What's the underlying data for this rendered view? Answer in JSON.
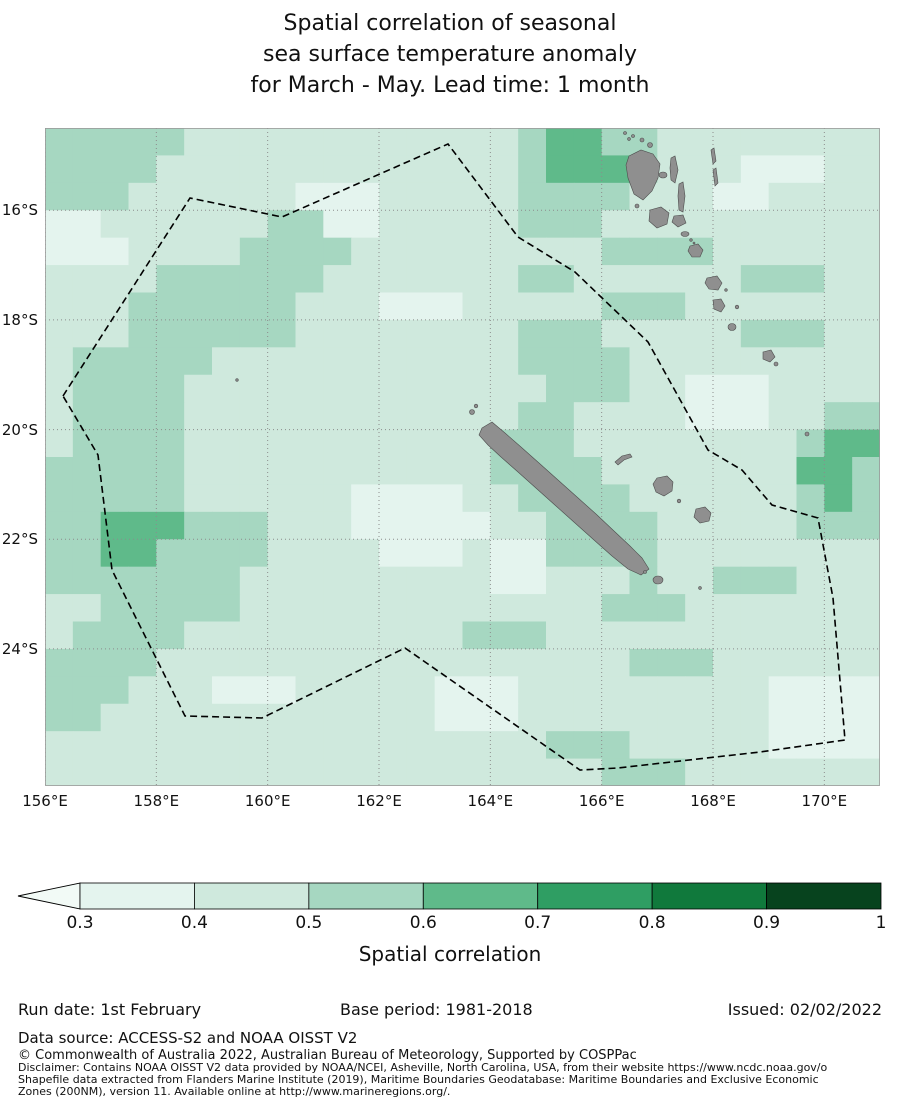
{
  "title": {
    "line1": "Spatial correlation of seasonal",
    "line2": "sea surface temperature anomaly",
    "line3": "for March - May. Lead time: 1 month"
  },
  "map": {
    "x_ticks": [
      "156°E",
      "158°E",
      "160°E",
      "162°E",
      "164°E",
      "166°E",
      "168°E",
      "170°E"
    ],
    "y_ticks": [
      "16°S",
      "18°S",
      "20°S",
      "22°S",
      "24°S"
    ],
    "land_color": "#8f8f8f",
    "land_outline_color": "#4d4d4d",
    "grid_color": "#8c8c8c",
    "eez_boundary_style": "black dashed",
    "region": "New Caledonia EEZ and Vanuatu, southwest Pacific"
  },
  "chart_data": {
    "type": "heatmap",
    "title": "Spatial correlation of seasonal sea surface temperature anomaly for March - May. Lead time: 1 month",
    "x_ticks": [
      "156°E",
      "158°E",
      "160°E",
      "162°E",
      "164°E",
      "166°E",
      "168°E",
      "170°E"
    ],
    "y_ticks": [
      "16°S",
      "18°S",
      "20°S",
      "22°S",
      "24°S"
    ],
    "lon_range_deg_east": [
      156,
      171
    ],
    "lat_range_deg_south": [
      14.5,
      26.5
    ],
    "cell_size_deg": 0.5,
    "colorbar": {
      "label": "Spatial correlation",
      "ticks": [
        0.3,
        0.4,
        0.5,
        0.6,
        0.7,
        0.8,
        0.9,
        1
      ],
      "colors": [
        "#f2faf6",
        "#e4f4ee",
        "#cfe9dd",
        "#a6d7c1",
        "#5fba8a",
        "#2f9e63",
        "#10793c",
        "#07431e"
      ],
      "under_arrow": true
    },
    "bin_value_ranges": {
      "1": "0.3-0.4",
      "2": "0.4-0.5",
      "3": "0.5-0.6",
      "4": "0.6-0.7",
      "5": "0.7-0.8"
    },
    "grid_bins": [
      "333332222222222223443322222222",
      "333322222222222223444322211122",
      "333222222111222223333222112222",
      "112222223311222223332222222222",
      "111222233332222222223333222222",
      "222233333322222223322222233322",
      "222333333222111222223332222222",
      "222333333222222223332222233322",
      "233333222222222223333222222222",
      "233332222222222222333221112222",
      "233332222222222223322221112233",
      "233332222222222233322222222344",
      "333332222222222233332222222443",
      "333332222221111223333222222343",
      "334443332221111122333322222333",
      "334433332222111211333322222222",
      "333333322222222211222322333222",
      "223333322222222222223332222222",
      "233332222222222333222222222222",
      "333322222222222222222333222222",
      "333222111222221112222222221111",
      "332222222222221112222222221111",
      "222222222222222222333222221111",
      "222222222222222222223332222222"
    ]
  },
  "footer": {
    "run_date": "Run date: 1st February",
    "base_period": "Base period: 1981-2018",
    "issued": "Issued: 02/02/2022",
    "data_source": "Data source: ACCESS-S2 and NOAA OISST V2",
    "copyright": "© Commonwealth of Australia 2022, Australian Bureau of Meteorology, Supported by COSPPac",
    "disclaimer_line1": "Disclaimer: Contains NOAA OISST V2 data provided by NOAA/NCEI, Asheville, North Carolina, USA, from their website https://www.ncdc.noaa.gov/o",
    "disclaimer_line2": "Shapefile data extracted from Flanders Marine Institute (2019), Maritime Boundaries Geodatabase: Maritime Boundaries and Exclusive Economic",
    "disclaimer_line3": "Zones (200NM), version 11. Available online at http://www.marineregions.org/."
  }
}
